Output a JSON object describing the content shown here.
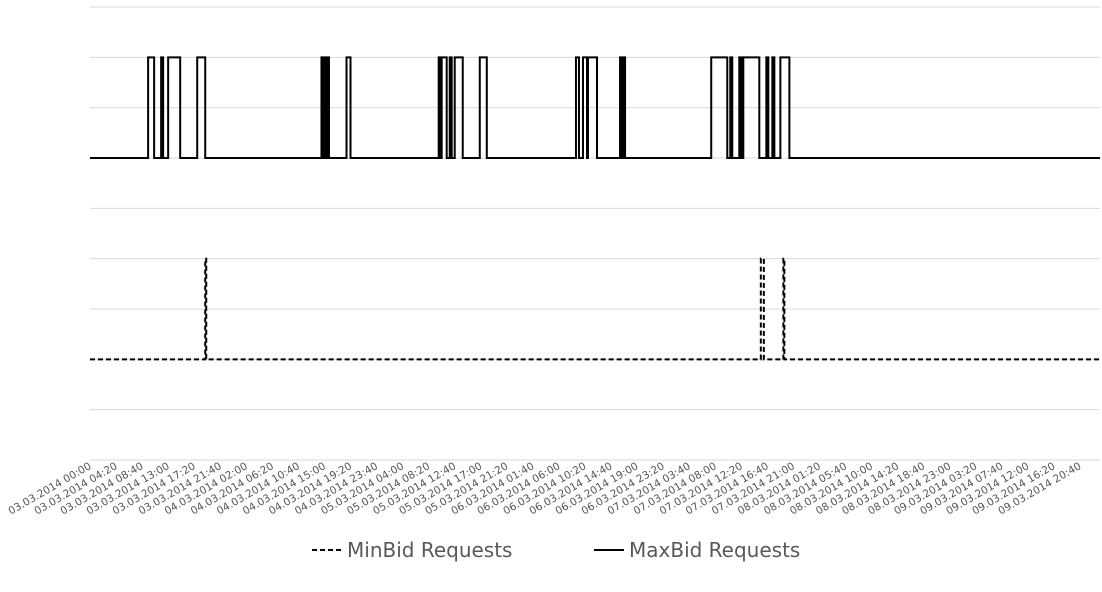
{
  "chart_data": {
    "type": "line",
    "title": "",
    "xlabel": "",
    "ylabel": "",
    "x_tick_labels": [
      "03.03.2014 00:00",
      "03.03.2014 04:20",
      "03.03.2014 08:40",
      "03.03.2014 13:00",
      "03.03.2014 17:20",
      "03.03.2014 21:40",
      "04.03.2014 02:00",
      "04.03.2014 06:20",
      "04.03.2014 10:40",
      "04.03.2014 15:00",
      "04.03.2014 19:20",
      "04.03.2014 23:40",
      "05.03.2014 04:00",
      "05.03.2014 08:20",
      "05.03.2014 12:40",
      "05.03.2014 17:00",
      "05.03.2014 21:20",
      "06.03.2014 01:40",
      "06.03.2014 06:00",
      "06.03.2014 10:20",
      "06.03.2014 14:40",
      "06.03.2014 19:00",
      "06.03.2014 23:20",
      "07.03.2014 03:40",
      "07.03.2014 08:00",
      "07.03.2014 12:20",
      "07.03.2014 16:40",
      "07.03.2014 21:00",
      "08.03.2014 01:20",
      "08.03.2014 05:40",
      "08.03.2014 10:00",
      "08.03.2014 14:20",
      "08.03.2014 18:40",
      "08.03.2014 23:00",
      "09.03.2014 03:20",
      "09.03.2014 07:40",
      "09.03.2014 12:00",
      "09.03.2014 16:20",
      "09.03.2014 20:40"
    ],
    "xlim": [
      "03.03.2014 00:00",
      "10.03.2014 00:00"
    ],
    "ylim": [
      0,
      9
    ],
    "y_gridlines": [
      1,
      2,
      3,
      4,
      5,
      6,
      7,
      8,
      9
    ],
    "grid": "horizontal",
    "legend": "bottom-center",
    "series": [
      {
        "name": "MinBid Requests",
        "style": "dashed",
        "color": "#000000",
        "baseline": 2,
        "peak": 4,
        "pulses": [
          [
            "03.03.2014 19:10",
            "03.03.2014 19:20"
          ],
          [
            "07.03.2014 15:35",
            "07.03.2014 16:05"
          ],
          [
            "07.03.2014 19:20",
            "07.03.2014 19:30"
          ]
        ]
      },
      {
        "name": "MaxBid Requests",
        "style": "solid",
        "color": "#000000",
        "baseline": 6,
        "peak": 8,
        "pulses": [
          [
            "03.03.2014 09:40",
            "03.03.2014 10:40"
          ],
          [
            "03.03.2014 11:50",
            "03.03.2014 12:10"
          ],
          [
            "03.03.2014 13:00",
            "03.03.2014 15:00"
          ],
          [
            "03.03.2014 17:50",
            "03.03.2014 19:10"
          ],
          [
            "04.03.2014 14:30",
            "04.03.2014 14:50"
          ],
          [
            "04.03.2014 15:00",
            "04.03.2014 15:20"
          ],
          [
            "04.03.2014 15:25",
            "04.03.2014 15:45"
          ],
          [
            "04.03.2014 18:40",
            "04.03.2014 19:20"
          ],
          [
            "05.03.2014 10:00",
            "05.03.2014 10:20"
          ],
          [
            "05.03.2014 10:30",
            "05.03.2014 11:20"
          ],
          [
            "05.03.2014 11:50",
            "05.03.2014 12:10"
          ],
          [
            "05.03.2014 12:40",
            "05.03.2014 14:00"
          ],
          [
            "05.03.2014 16:50",
            "05.03.2014 18:00"
          ],
          [
            "06.03.2014 08:50",
            "06.03.2014 09:20"
          ],
          [
            "06.03.2014 10:00",
            "06.03.2014 10:40"
          ],
          [
            "06.03.2014 10:50",
            "06.03.2014 12:20"
          ],
          [
            "06.03.2014 16:10",
            "06.03.2014 16:30"
          ],
          [
            "06.03.2014 16:40",
            "06.03.2014 17:00"
          ],
          [
            "07.03.2014 07:20",
            "07.03.2014 10:00"
          ],
          [
            "07.03.2014 10:30",
            "07.03.2014 10:50"
          ],
          [
            "07.03.2014 12:00",
            "07.03.2014 12:20"
          ],
          [
            "07.03.2014 12:40",
            "07.03.2014 15:20"
          ],
          [
            "07.03.2014 16:30",
            "07.03.2014 16:50"
          ],
          [
            "07.03.2014 17:30",
            "07.03.2014 17:50"
          ],
          [
            "07.03.2014 18:50",
            "07.03.2014 20:20"
          ]
        ]
      }
    ]
  }
}
